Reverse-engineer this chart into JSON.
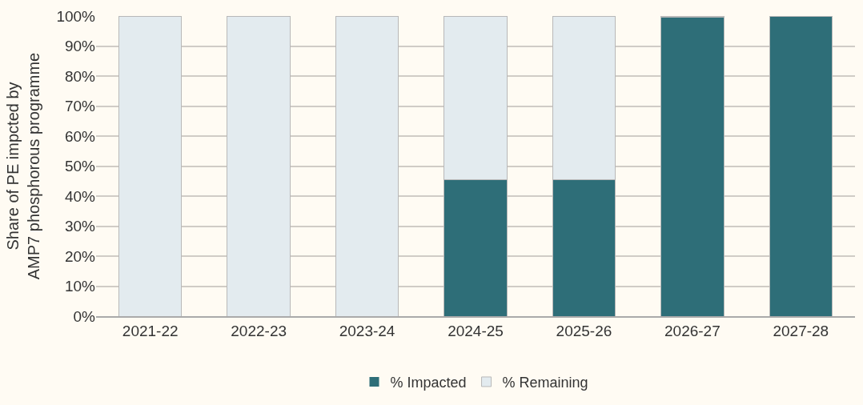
{
  "chart_data": {
    "type": "bar",
    "stacked": true,
    "ylabel": "Share of PE impcted by AMP7 phosphorous programme",
    "categories": [
      "2021-22",
      "2022-23",
      "2023-24",
      "2024-25",
      "2025-26",
      "2026-27",
      "2027-28"
    ],
    "series": [
      {
        "name": "% Impacted",
        "color": "#2e6e78",
        "values": [
          0,
          0,
          0,
          45.5,
          45.5,
          99.5,
          100
        ]
      },
      {
        "name": "% Remaining",
        "color": "#e3ebef",
        "values": [
          100,
          100,
          100,
          54.5,
          54.5,
          0.5,
          0
        ]
      }
    ],
    "ylim": [
      0,
      100
    ],
    "yticks": [
      {
        "value": 0,
        "label": "0%"
      },
      {
        "value": 10,
        "label": "10%"
      },
      {
        "value": 20,
        "label": "20%"
      },
      {
        "value": 30,
        "label": "30%"
      },
      {
        "value": 40,
        "label": "40%"
      },
      {
        "value": 50,
        "label": "50%"
      },
      {
        "value": 60,
        "label": "60%"
      },
      {
        "value": 70,
        "label": "70%"
      },
      {
        "value": 80,
        "label": "80%"
      },
      {
        "value": 90,
        "label": "90%"
      },
      {
        "value": 100,
        "label": "100%"
      }
    ],
    "grid": "y",
    "legend": "bottom"
  }
}
